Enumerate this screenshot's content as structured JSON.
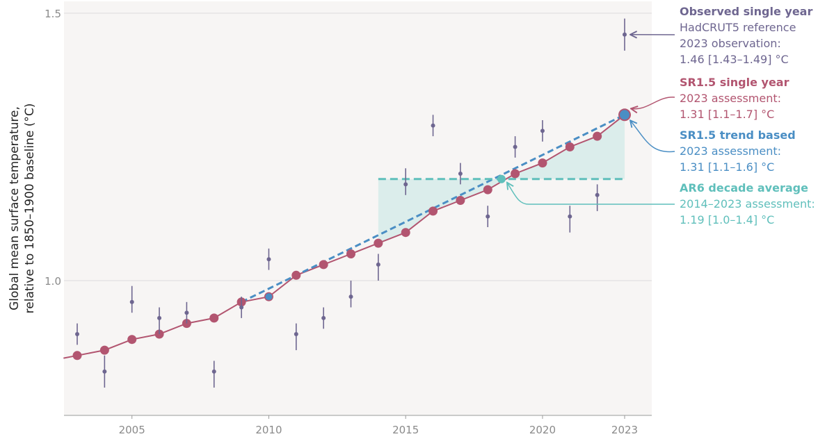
{
  "chart_data": {
    "type": "line",
    "ylabel": [
      "Global mean surface temperature,",
      "relative to 1850–1900 baseline (°C)"
    ],
    "xlim": [
      2002.5,
      2024
    ],
    "ylim": [
      0.75,
      1.5
    ],
    "x_ticks": [
      2005,
      2010,
      2015,
      2020,
      2023
    ],
    "y_ticks": [
      1.0,
      1.5
    ],
    "grid": "horizontal",
    "background": "#f7f5f4",
    "colors": {
      "observed": "#6e6690",
      "sr15_single": "#b25570",
      "sr15_trend": "#4a8ec4",
      "ar6": "#5fbfbb",
      "ar6_fill": "#d9ecea"
    },
    "series": [
      {
        "name": "Observed single year",
        "style": "point_with_error_bar",
        "points": [
          {
            "x": 2003,
            "y": 0.9,
            "low": 0.88,
            "high": 0.92
          },
          {
            "x": 2004,
            "y": 0.83,
            "low": 0.8,
            "high": 0.86
          },
          {
            "x": 2005,
            "y": 0.96,
            "low": 0.94,
            "high": 0.99
          },
          {
            "x": 2006,
            "y": 0.93,
            "low": 0.9,
            "high": 0.95
          },
          {
            "x": 2007,
            "y": 0.94,
            "low": 0.92,
            "high": 0.96
          },
          {
            "x": 2008,
            "y": 0.83,
            "low": 0.8,
            "high": 0.85
          },
          {
            "x": 2009,
            "y": 0.95,
            "low": 0.93,
            "high": 0.97
          },
          {
            "x": 2010,
            "y": 1.04,
            "low": 1.02,
            "high": 1.06
          },
          {
            "x": 2011,
            "y": 0.9,
            "low": 0.87,
            "high": 0.92
          },
          {
            "x": 2012,
            "y": 0.93,
            "low": 0.91,
            "high": 0.95
          },
          {
            "x": 2013,
            "y": 0.97,
            "low": 0.95,
            "high": 1.0
          },
          {
            "x": 2014,
            "y": 1.03,
            "low": 1.0,
            "high": 1.05
          },
          {
            "x": 2015,
            "y": 1.18,
            "low": 1.16,
            "high": 1.21
          },
          {
            "x": 2016,
            "y": 1.29,
            "low": 1.27,
            "high": 1.31
          },
          {
            "x": 2017,
            "y": 1.2,
            "low": 1.18,
            "high": 1.22
          },
          {
            "x": 2018,
            "y": 1.12,
            "low": 1.1,
            "high": 1.14
          },
          {
            "x": 2019,
            "y": 1.25,
            "low": 1.23,
            "high": 1.27
          },
          {
            "x": 2020,
            "y": 1.28,
            "low": 1.26,
            "high": 1.3
          },
          {
            "x": 2021,
            "y": 1.12,
            "low": 1.09,
            "high": 1.14
          },
          {
            "x": 2022,
            "y": 1.16,
            "low": 1.13,
            "high": 1.18
          },
          {
            "x": 2023,
            "y": 1.46,
            "low": 1.43,
            "high": 1.49
          }
        ]
      },
      {
        "name": "SR1.5 single year",
        "style": "line_markers",
        "x": [
          2003,
          2004,
          2005,
          2006,
          2007,
          2008,
          2009,
          2010,
          2011,
          2012,
          2013,
          2014,
          2015,
          2016,
          2017,
          2018,
          2019,
          2020,
          2021,
          2022,
          2023
        ],
        "y": [
          0.86,
          0.87,
          0.89,
          0.9,
          0.92,
          0.93,
          0.96,
          0.97,
          1.01,
          1.03,
          1.05,
          1.07,
          1.09,
          1.13,
          1.15,
          1.17,
          1.2,
          1.22,
          1.25,
          1.27,
          1.31
        ]
      },
      {
        "name": "SR1.5 trend based",
        "style": "dashed_line",
        "x": [
          2009,
          2023
        ],
        "y": [
          0.96,
          1.31
        ],
        "markers": [
          {
            "x": 2010,
            "y": 0.97
          },
          {
            "x": 2023,
            "y": 1.31
          }
        ]
      },
      {
        "name": "AR6 decade average",
        "style": "dashed_horizontal",
        "x": [
          2014,
          2023
        ],
        "y": [
          1.19,
          1.19
        ],
        "marker": {
          "x": 2018.5,
          "y": 1.19
        }
      }
    ]
  },
  "annotations": [
    {
      "title": "Observed single year",
      "lines": [
        "HadCRUT5 reference",
        "2023 observation:",
        "1.46 [1.43–1.49] °C"
      ]
    },
    {
      "title": "SR1.5 single year",
      "lines": [
        "2023 assessment:",
        "1.31 [1.1–1.7] °C"
      ]
    },
    {
      "title": "SR1.5 trend based",
      "lines": [
        "2023 assessment:",
        "1.31 [1.1–1.6] °C"
      ]
    },
    {
      "title": "AR6 decade average",
      "lines": [
        "2014–2023 assessment:",
        "1.19 [1.0–1.4] °C"
      ]
    }
  ]
}
